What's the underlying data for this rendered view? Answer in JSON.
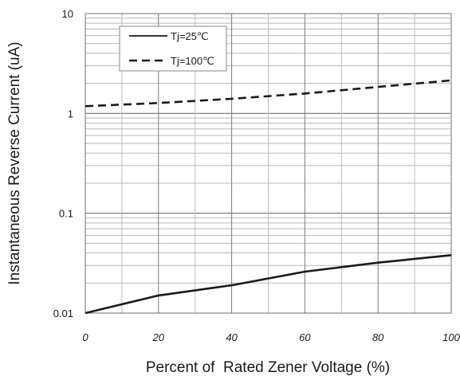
{
  "chart_data": {
    "type": "line",
    "title": "",
    "xlabel": "Percent of  Rated Zener Voltage (%)",
    "ylabel": "Instantaneous Reverse Current (uA)",
    "x_ticks": [
      "0",
      "20",
      "40",
      "60",
      "80",
      "100"
    ],
    "y_ticks": [
      "0.01",
      "0.1",
      "1",
      "10"
    ],
    "xlim": [
      0,
      100
    ],
    "ylim": [
      0.01,
      10
    ],
    "yscale": "log",
    "grid": true,
    "legend_position": "top-left",
    "series": [
      {
        "name": "Tj=25℃",
        "style": "solid",
        "color": "#1a1a1a",
        "x": [
          0,
          20,
          40,
          60,
          80,
          100
        ],
        "y": [
          0.01,
          0.015,
          0.019,
          0.026,
          0.032,
          0.038
        ]
      },
      {
        "name": "Tj=100℃",
        "style": "dashed",
        "color": "#1a1a1a",
        "x": [
          0,
          20,
          40,
          60,
          80,
          100
        ],
        "y": [
          1.18,
          1.27,
          1.4,
          1.58,
          1.84,
          2.14
        ]
      }
    ]
  }
}
